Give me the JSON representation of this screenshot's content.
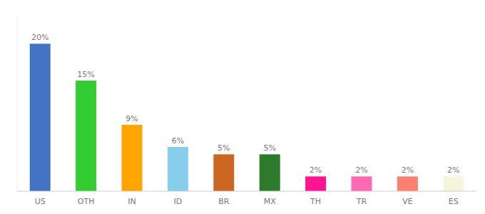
{
  "chart_data": {
    "type": "bar",
    "categories": [
      "US",
      "OTH",
      "IN",
      "ID",
      "BR",
      "MX",
      "TH",
      "TR",
      "VE",
      "ES"
    ],
    "values": [
      20,
      15,
      9,
      6,
      5,
      5,
      2,
      2,
      2,
      2
    ],
    "value_labels": [
      "20%",
      "15%",
      "9%",
      "6%",
      "5%",
      "5%",
      "2%",
      "2%",
      "2%",
      "2%"
    ],
    "data_labels": true,
    "colors": [
      "#4472C4",
      "#33CC33",
      "#FFA500",
      "#87CEEB",
      "#CC6622",
      "#2D7A2D",
      "#FF1493",
      "#FF69B4",
      "#FA8072",
      "#F5F5DC"
    ],
    "ylim": [
      0,
      24
    ],
    "grid": false,
    "tick_labels": "x"
  }
}
